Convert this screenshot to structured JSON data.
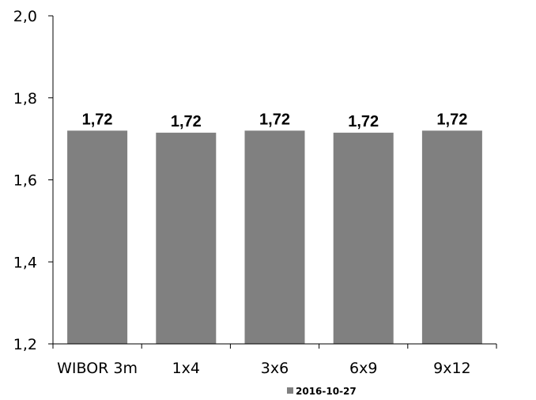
{
  "chart_data": {
    "type": "bar",
    "title": "",
    "xlabel": "",
    "ylabel": "",
    "categories": [
      "WIBOR 3m",
      "1x4",
      "3x6",
      "6x9",
      "9x12"
    ],
    "series": [
      {
        "name": "2016-10-27",
        "values": [
          1.72,
          1.715,
          1.72,
          1.715,
          1.72
        ],
        "labels": [
          "1,72",
          "1,72",
          "1,72",
          "1,72",
          "1,72"
        ],
        "color": "#808080"
      }
    ],
    "ylim": [
      1.2,
      2.0
    ],
    "yticks": [
      2.0,
      1.8,
      1.6,
      1.4,
      1.2
    ],
    "ytick_labels": [
      "2,0",
      "1,8",
      "1,6",
      "1,4",
      "1,2"
    ],
    "grid": false,
    "legend_position": "bottom"
  }
}
